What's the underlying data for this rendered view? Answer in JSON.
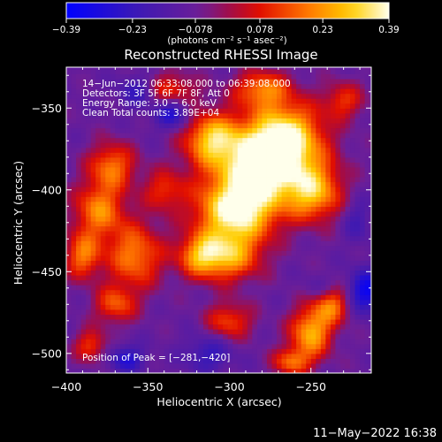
{
  "chart_data": {
    "type": "heatmap",
    "title": "Reconstructed RHESSI Image",
    "xlabel": "Heliocentric X (arcsec)",
    "ylabel": "Heliocentric Y (arcsec)",
    "xlim": [
      -400,
      -213
    ],
    "ylim": [
      -512,
      -325
    ],
    "x_ticks": [
      {
        "value": -400,
        "label": "−400"
      },
      {
        "value": -350,
        "label": "−350"
      },
      {
        "value": -300,
        "label": "−300"
      },
      {
        "value": -250,
        "label": "−250"
      }
    ],
    "y_ticks": [
      {
        "value": -350,
        "label": "−350"
      },
      {
        "value": -400,
        "label": "−400"
      },
      {
        "value": -450,
        "label": "−450"
      },
      {
        "value": -500,
        "label": "−500"
      }
    ],
    "colorbar": {
      "min": -0.39,
      "max": 0.39,
      "ticks": [
        {
          "value": -0.39,
          "label": "−0.39"
        },
        {
          "value": -0.23,
          "label": "−0.23"
        },
        {
          "value": -0.078,
          "label": "−0.078"
        },
        {
          "value": 0.078,
          "label": "0.078"
        },
        {
          "value": 0.23,
          "label": "0.23"
        },
        {
          "value": 0.39,
          "label": "0.39"
        }
      ],
      "unit_label": "(photons cm⁻² s⁻¹ asec⁻²)"
    },
    "annotations": [
      "14−Jun−2012 06:33:08.000 to 06:39:08.000",
      "Detectors: 3F 5F 6F 7F 8F, Att 0",
      "Energy Range: 3.0 − 6.0 keV",
      "Clean     Total counts: 3.89E+04"
    ],
    "peak_label": "Position of Peak = [−281,−420]",
    "peak": {
      "x": -281,
      "y": -420
    },
    "sources": [
      {
        "x": -279,
        "y": -385,
        "value": 0.39,
        "sx": 22,
        "sy": 16
      },
      {
        "x": -296,
        "y": -413,
        "value": 0.36,
        "sx": 17,
        "sy": 13
      },
      {
        "x": -266,
        "y": -365,
        "value": 0.27,
        "sx": 16,
        "sy": 14
      },
      {
        "x": -311,
        "y": -368,
        "value": 0.24,
        "sx": 12,
        "sy": 11
      },
      {
        "x": -248,
        "y": -402,
        "value": 0.21,
        "sx": 12,
        "sy": 12
      },
      {
        "x": -300,
        "y": -440,
        "value": 0.22,
        "sx": 14,
        "sy": 11
      },
      {
        "x": -318,
        "y": -440,
        "value": 0.18,
        "sx": 10,
        "sy": 9
      },
      {
        "x": -380,
        "y": -412,
        "value": 0.2,
        "sx": 11,
        "sy": 12
      },
      {
        "x": -372,
        "y": -385,
        "value": 0.18,
        "sx": 10,
        "sy": 10
      },
      {
        "x": -358,
        "y": -440,
        "value": 0.2,
        "sx": 12,
        "sy": 14
      },
      {
        "x": -390,
        "y": -440,
        "value": 0.18,
        "sx": 8,
        "sy": 10
      },
      {
        "x": -370,
        "y": -470,
        "value": 0.14,
        "sx": 9,
        "sy": 8
      },
      {
        "x": -340,
        "y": -400,
        "value": 0.1,
        "sx": 9,
        "sy": 9
      },
      {
        "x": -300,
        "y": -480,
        "value": 0.13,
        "sx": 10,
        "sy": 8
      },
      {
        "x": -250,
        "y": -487,
        "value": 0.26,
        "sx": 9,
        "sy": 11
      },
      {
        "x": -237,
        "y": -470,
        "value": 0.17,
        "sx": 8,
        "sy": 8
      },
      {
        "x": -262,
        "y": -505,
        "value": 0.16,
        "sx": 8,
        "sy": 6
      },
      {
        "x": -385,
        "y": -495,
        "value": 0.12,
        "sx": 7,
        "sy": 7
      },
      {
        "x": -230,
        "y": -345,
        "value": 0.1,
        "sx": 9,
        "sy": 8
      },
      {
        "x": -336,
        "y": -340,
        "value": 0.14,
        "sx": 11,
        "sy": 8
      },
      {
        "x": -280,
        "y": -338,
        "value": 0.18,
        "sx": 12,
        "sy": 8
      },
      {
        "x": -335,
        "y": -352,
        "value": -0.34,
        "sx": 8,
        "sy": 7
      },
      {
        "x": -363,
        "y": -503,
        "value": -0.28,
        "sx": 8,
        "sy": 6
      },
      {
        "x": -216,
        "y": -462,
        "value": -0.36,
        "sx": 8,
        "sy": 9
      },
      {
        "x": -356,
        "y": -340,
        "value": -0.25,
        "sx": 8,
        "sy": 7
      },
      {
        "x": -313,
        "y": -500,
        "value": -0.24,
        "sx": 10,
        "sy": 8
      },
      {
        "x": -222,
        "y": -418,
        "value": -0.2,
        "sx": 6,
        "sy": 10
      },
      {
        "x": -245,
        "y": -460,
        "value": -0.16,
        "sx": 7,
        "sy": 6
      }
    ],
    "background": -0.09
  },
  "footer": {
    "date": "11−May−2022 16:38"
  }
}
